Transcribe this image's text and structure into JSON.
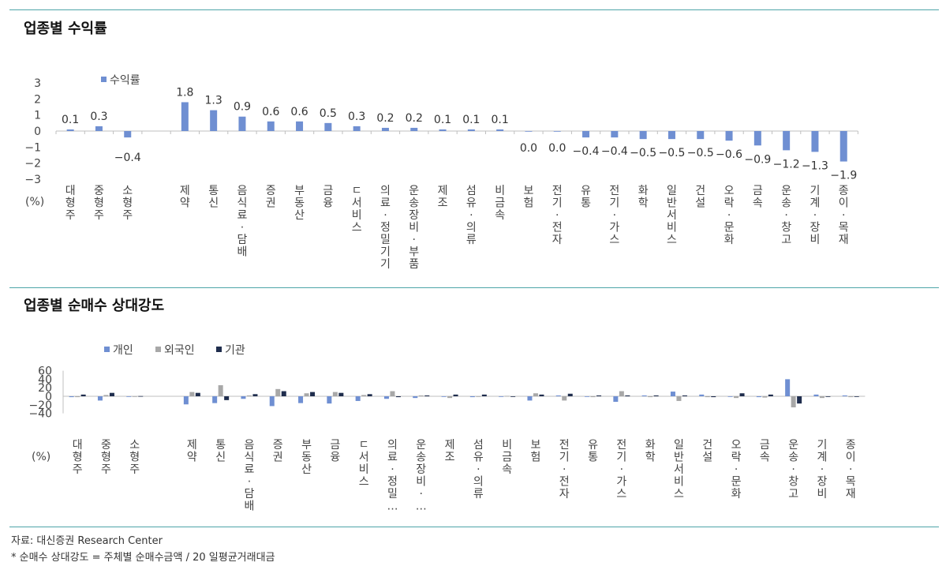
{
  "titles": {
    "chart1": "업종별 수익률",
    "chart2": "업종별 순매수 상대강도"
  },
  "footnotes": {
    "source": "자료: 대신증권 Research Center",
    "definition": "* 순매수 상대강도 = 주체별 순매수금액 / 20 일평균거래대금"
  },
  "unit": "(%)",
  "colors": {
    "blue": "#6f8fd2",
    "gray": "#a8a8a8",
    "navy": "#1f2d4d",
    "rule": "#4ea5a8"
  },
  "chart_data": [
    {
      "type": "bar",
      "title": "업종별 수익률",
      "ylabel": "(%)",
      "ylim": [
        -3,
        3
      ],
      "legend": "top-left",
      "categories": [
        "대형주",
        "중형주",
        "소형주",
        "",
        "제약",
        "통신",
        "음식료·담배",
        "증권",
        "부동산",
        "금융",
        "IT서비스",
        "의료·정밀기기",
        "운송장비·부품",
        "제조",
        "섬유·의류",
        "비금속",
        "보험",
        "전기·전자",
        "유통",
        "전기·가스",
        "화학",
        "일반서비스",
        "건설",
        "오락·문화",
        "금속",
        "운송·창고",
        "기계·장비",
        "종이·목재"
      ],
      "category_labels": [
        "대형주",
        "중형주",
        "소형주",
        "",
        "제약",
        "통신",
        "음식료·담배",
        "증권",
        "부동산",
        "금융",
        "ㄷ서비스",
        "의료·정밀기기",
        "운송장비·부품",
        "제조",
        "섬유·의류",
        "비금속",
        "보험",
        "전기·전자",
        "유통",
        "전기·가스",
        "화학",
        "일반서비스",
        "건설",
        "오락·문화",
        "금속",
        "운송·창고",
        "기계·장비",
        "종이·목재"
      ],
      "series": [
        {
          "name": "수익률",
          "values": [
            0.1,
            0.3,
            -0.4,
            null,
            1.8,
            1.3,
            0.9,
            0.6,
            0.6,
            0.5,
            0.3,
            0.2,
            0.2,
            0.1,
            0.1,
            0.1,
            0.0,
            0.0,
            -0.4,
            -0.4,
            -0.5,
            -0.5,
            -0.5,
            -0.6,
            -0.9,
            -1.2,
            -1.3,
            -1.9
          ]
        }
      ],
      "data_labels": [
        "0.1",
        "0.3",
        "−0.4",
        "",
        "1.8",
        "1.3",
        "0.9",
        "0.6",
        "0.6",
        "0.5",
        "0.3",
        "0.2",
        "0.2",
        "0.1",
        "0.1",
        "0.1",
        "0.0",
        "0.0",
        "−0.4",
        "−0.4",
        "−0.5",
        "−0.5",
        "−0.5",
        "−0.6",
        "−0.9",
        "−1.2",
        "−1.3",
        "−1.9"
      ],
      "yticks": [
        "3",
        "2",
        "1",
        "0",
        "−1",
        "−2",
        "−3"
      ]
    },
    {
      "type": "bar",
      "title": "업종별 순매수 상대강도",
      "ylabel": "(%)",
      "ylim": [
        -40,
        60
      ],
      "legend": "top-left",
      "categories": [
        "대형주",
        "중형주",
        "소형주",
        "",
        "제약",
        "통신",
        "음식료·담배",
        "증권",
        "부동산",
        "금융",
        "IT서비스",
        "의료·정밀…",
        "운송장비·…",
        "제조",
        "섬유·의류",
        "비금속",
        "보험",
        "전기·전자",
        "유통",
        "전기·가스",
        "화학",
        "일반서비스",
        "건설",
        "오락·문화",
        "금속",
        "운송·창고",
        "기계·장비",
        "종이·목재"
      ],
      "category_labels": [
        "대형주",
        "중형주",
        "소형주",
        "",
        "제약",
        "통신",
        "음식료·담배",
        "증권",
        "부동산",
        "금융",
        "ㄷ서비스",
        "의료·정밀…",
        "운송장비·…",
        "제조",
        "섬유·의류",
        "비금속",
        "보험",
        "전기·전자",
        "유통",
        "전기·가스",
        "화학",
        "일반서비스",
        "건설",
        "오락·문화",
        "금속",
        "운송·창고",
        "기계·장비",
        "종이·목재"
      ],
      "series": [
        {
          "name": "개인",
          "values": [
            -2,
            -10,
            -0.5,
            null,
            -19,
            -16,
            -6,
            -23,
            -16,
            -17,
            -11,
            -6,
            -4,
            -1,
            -2,
            -1,
            -10,
            2,
            -1,
            -13,
            2,
            11,
            4,
            -1,
            -2,
            40,
            4,
            2
          ]
        },
        {
          "name": "외국인",
          "values": [
            -2,
            3,
            -0.5,
            null,
            10,
            26,
            2,
            17,
            7,
            10,
            3,
            12,
            2,
            -4,
            -1,
            1,
            7,
            -10,
            -2,
            12,
            -2,
            -11,
            -2,
            -4,
            -3,
            -26,
            -4,
            -2
          ]
        },
        {
          "name": "기관",
          "values": [
            4,
            8,
            0.5,
            null,
            8,
            -9,
            5,
            12,
            10,
            8,
            5,
            -2,
            2,
            4,
            4,
            0,
            4,
            6,
            2,
            2,
            2,
            2,
            -2,
            7,
            4,
            -17,
            -1,
            -1
          ]
        }
      ],
      "yticks": [
        "60",
        "40",
        "20",
        "0",
        "−20",
        "−40"
      ]
    }
  ]
}
